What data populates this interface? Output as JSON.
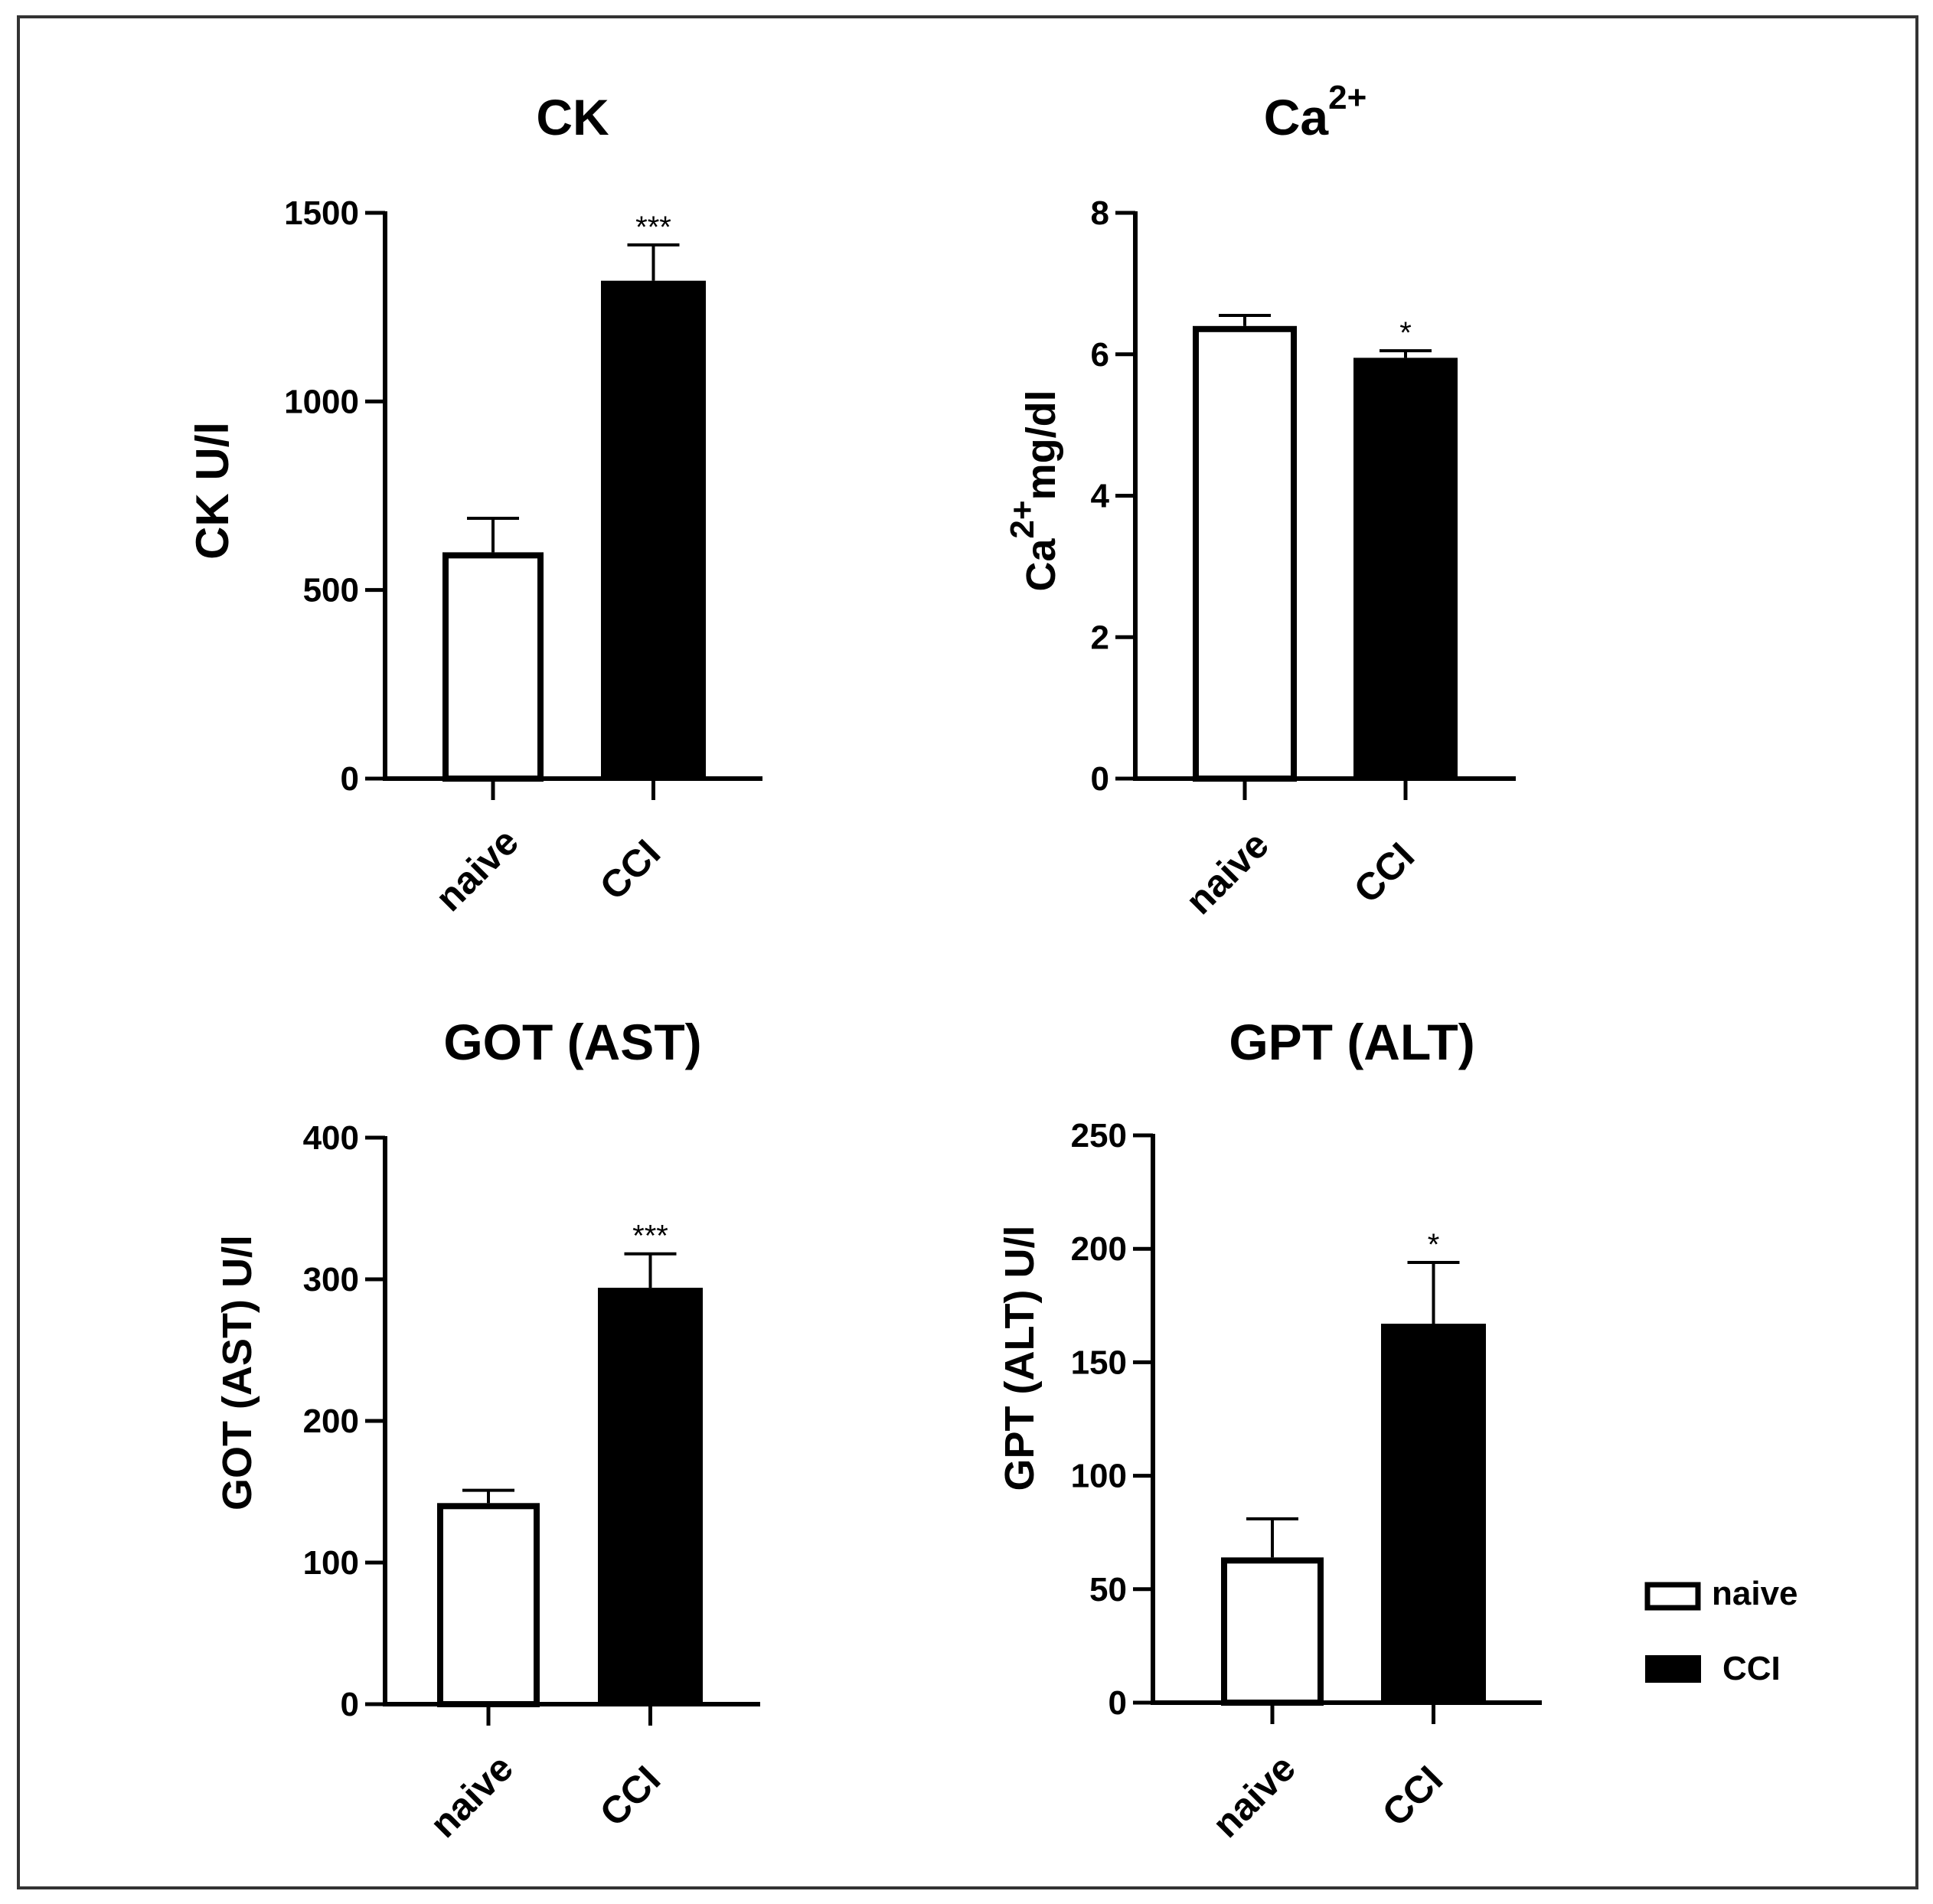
{
  "chart_data": [
    {
      "type": "bar",
      "title": "CK",
      "ylabel": "CK U/l",
      "categories": [
        "naive",
        "CCI"
      ],
      "values": [
        600,
        1320
      ],
      "errors": [
        90,
        95
      ],
      "significance": [
        "",
        "***"
      ],
      "ylim": [
        0,
        1500
      ],
      "yticks": [
        "0",
        "500",
        "1000",
        "1500"
      ]
    },
    {
      "type": "bar",
      "title": "Ca",
      "title_sup": "2+",
      "ylabel": "Ca",
      "ylabel_sup": "2+",
      "ylabel_suffix": "mg/dl",
      "categories": [
        "naive",
        "CCI"
      ],
      "values": [
        6.4,
        5.95
      ],
      "errors": [
        0.15,
        0.1
      ],
      "significance": [
        "",
        "*"
      ],
      "ylim": [
        0,
        8
      ],
      "yticks": [
        "0",
        "2",
        "4",
        "6",
        "8"
      ]
    },
    {
      "type": "bar",
      "title": "GOT (AST)",
      "ylabel": "GOT (AST) U/l",
      "categories": [
        "naive",
        "CCI"
      ],
      "values": [
        142,
        294
      ],
      "errors": [
        9,
        24
      ],
      "significance": [
        "",
        "***"
      ],
      "ylim": [
        0,
        400
      ],
      "yticks": [
        "0",
        "100",
        "200",
        "300",
        "400"
      ]
    },
    {
      "type": "bar",
      "title": "GPT (ALT)",
      "ylabel": "GPT (ALT) U/l",
      "categories": [
        "naive",
        "CCI"
      ],
      "values": [
        64,
        167
      ],
      "errors": [
        17,
        27
      ],
      "significance": [
        "",
        "*"
      ],
      "ylim": [
        0,
        250
      ],
      "yticks": [
        "0",
        "50",
        "100",
        "150",
        "200",
        "250"
      ]
    }
  ],
  "legend": {
    "items": [
      {
        "label": "naive",
        "fill": "#ffffff"
      },
      {
        "label": "CCI",
        "fill": "#000000"
      }
    ],
    "position": "bottom-right"
  },
  "colors": {
    "naive": "#ffffff",
    "CCI": "#000000",
    "axis": "#000000"
  }
}
